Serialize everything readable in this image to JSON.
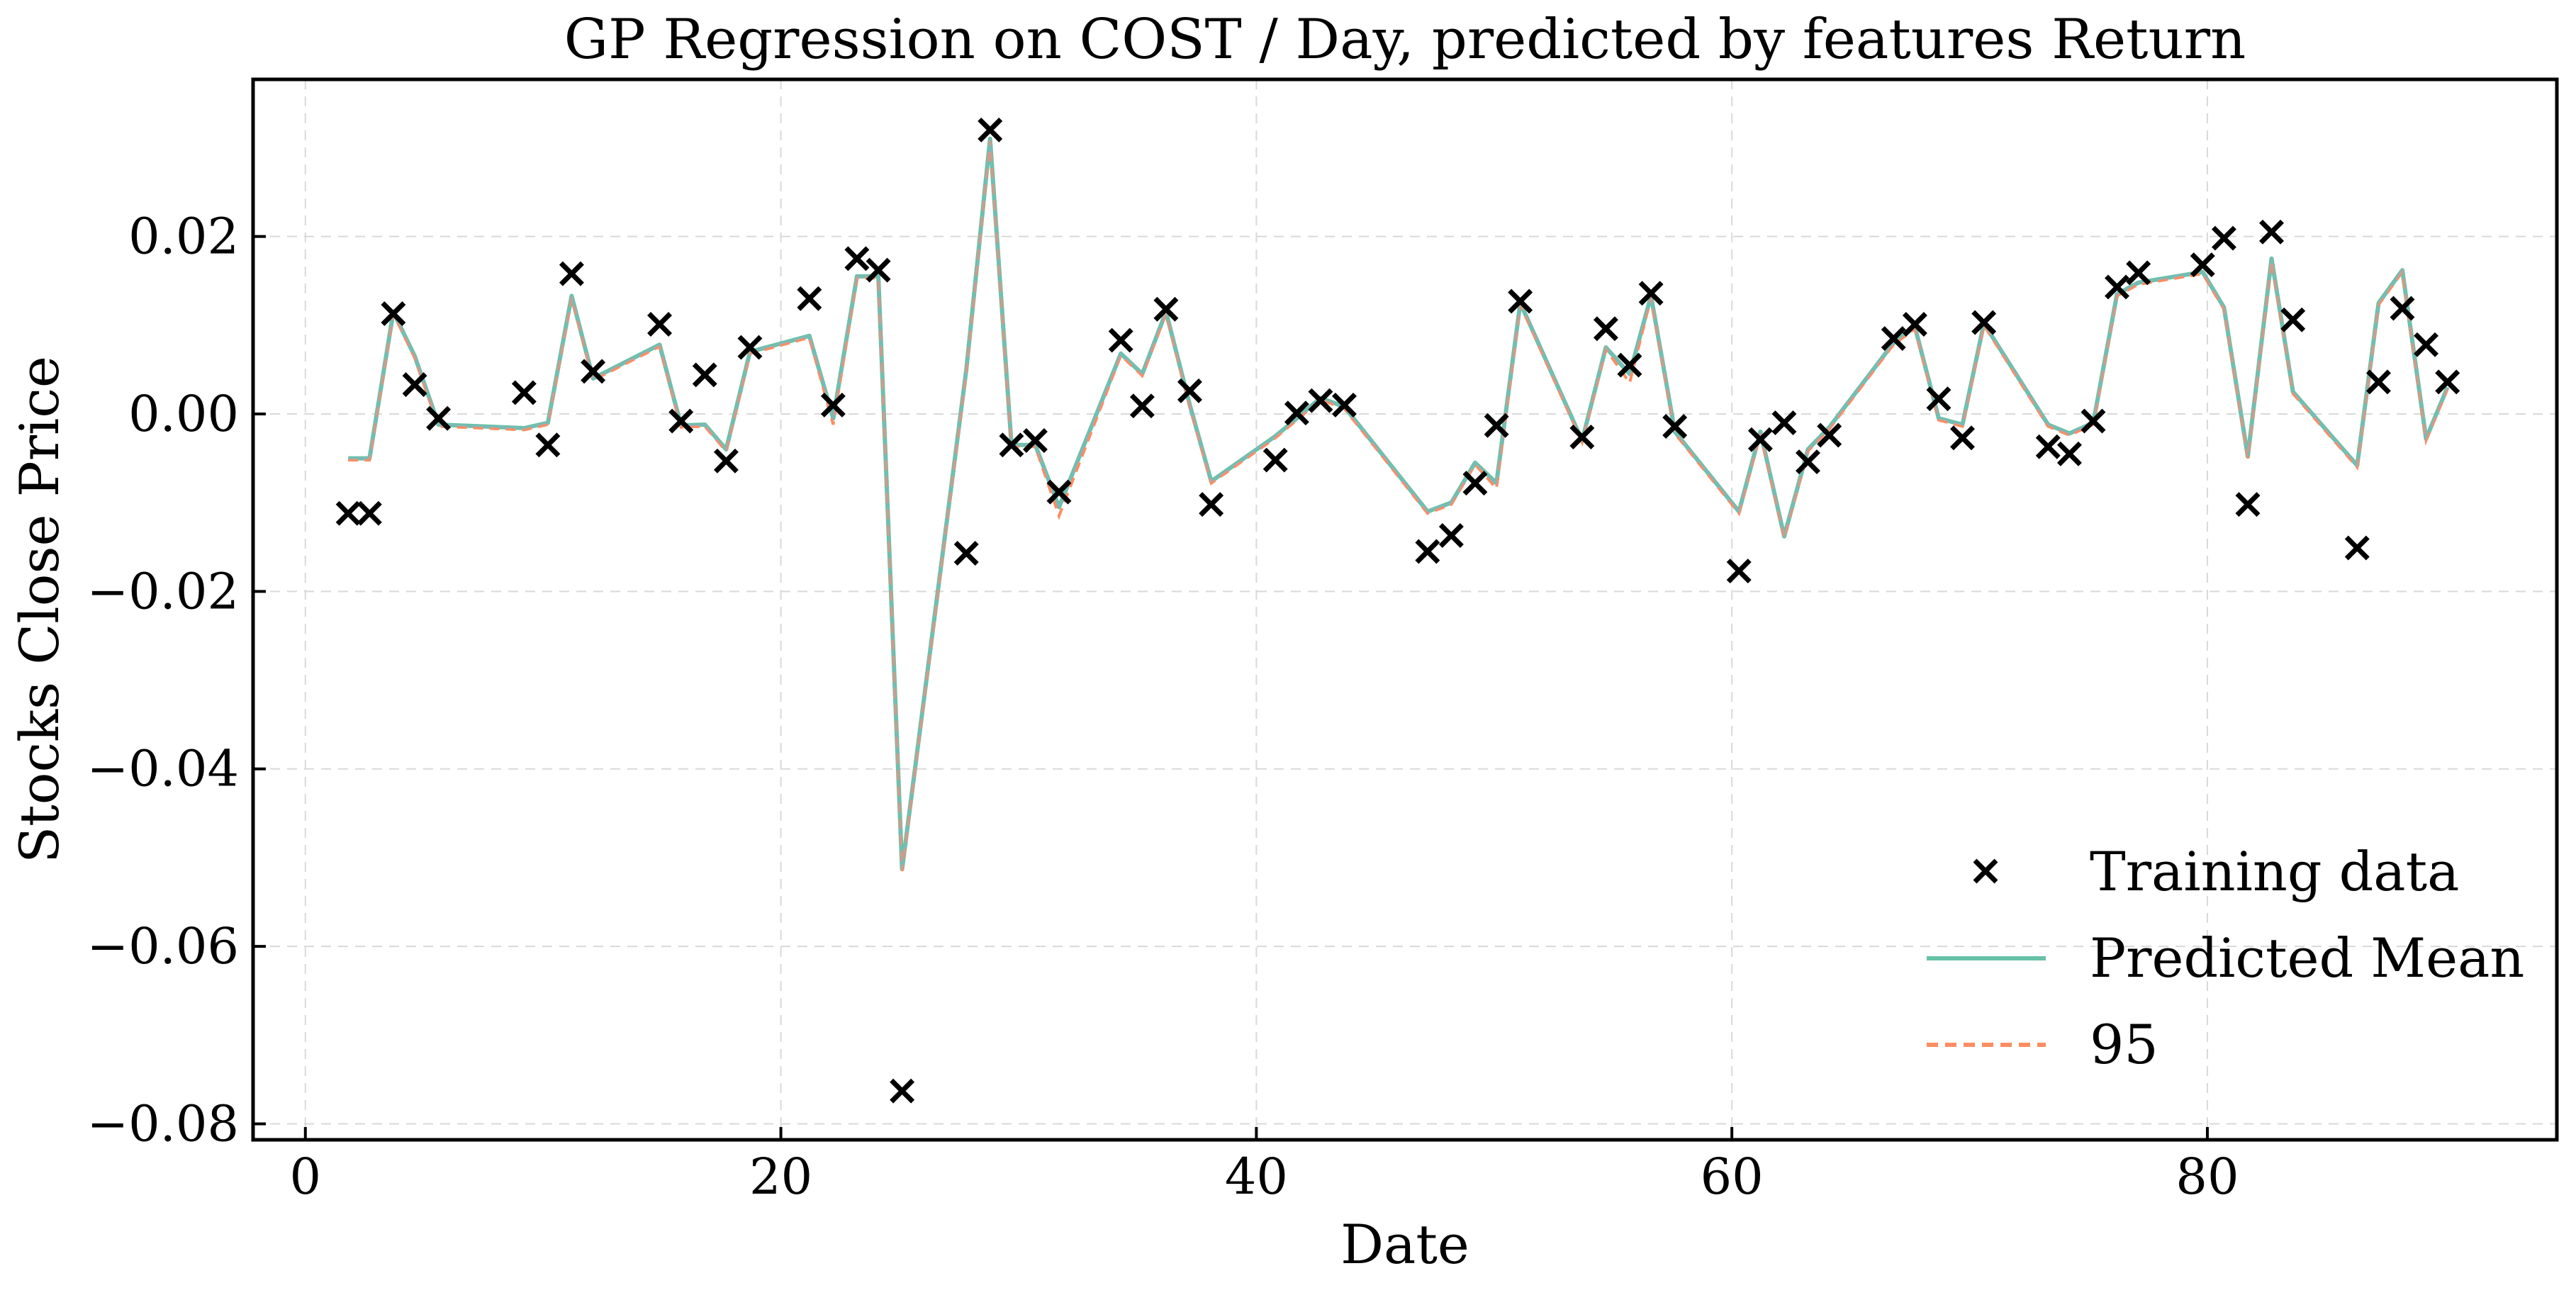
{
  "chart_data": {
    "type": "line",
    "title": "GP Regression on COST / Day, predicted by features Return",
    "xlabel": "Date",
    "ylabel": "Stocks Close Price",
    "xlim": [
      -2.2,
      94.7
    ],
    "ylim": [
      -0.0818,
      0.0377
    ],
    "xticks": [
      0,
      20,
      40,
      60,
      80
    ],
    "yticks": [
      0.02,
      0.0,
      -0.02,
      -0.04,
      -0.06,
      -0.08
    ],
    "ytick_labels": [
      "0.02",
      "0.00",
      "−0.02",
      "−0.04",
      "−0.06",
      "−0.08"
    ],
    "grid": true,
    "legend_position": "lower-right",
    "series": [
      {
        "name": "Training data",
        "kind": "scatter",
        "marker": "x",
        "color": "#000000",
        "x": [
          1.8,
          2.7,
          3.7,
          4.6,
          5.6,
          9.2,
          10.2,
          11.2,
          12.1,
          14.9,
          15.8,
          16.8,
          17.7,
          18.7,
          21.2,
          22.2,
          23.2,
          24.1,
          25.1,
          27.8,
          28.8,
          29.7,
          30.7,
          31.7,
          34.3,
          35.2,
          36.2,
          37.2,
          38.1,
          40.8,
          41.7,
          42.7,
          43.7,
          47.2,
          48.2,
          49.2,
          50.1,
          51.1,
          53.7,
          54.7,
          55.7,
          56.6,
          57.6,
          60.3,
          61.2,
          62.2,
          63.2,
          64.1,
          66.8,
          67.7,
          68.7,
          69.7,
          70.6,
          73.3,
          74.2,
          75.2,
          76.2,
          77.1,
          79.8,
          80.7,
          81.7,
          82.7,
          83.6,
          86.3,
          87.2,
          88.2,
          89.2,
          90.1
        ],
        "y": [
          -0.0112,
          -0.0112,
          0.0113,
          0.0033,
          -0.0005,
          0.0024,
          -0.0035,
          0.0158,
          0.0048,
          0.0101,
          -0.0008,
          0.0044,
          -0.0053,
          0.0075,
          0.013,
          0.001,
          0.0175,
          0.0162,
          -0.0763,
          -0.0157,
          0.032,
          -0.0035,
          -0.003,
          -0.0088,
          0.0083,
          0.0009,
          0.0118,
          0.0026,
          -0.0102,
          -0.0052,
          0.0001,
          0.0015,
          0.001,
          -0.0155,
          -0.0137,
          -0.0078,
          -0.0013,
          0.0127,
          -0.0026,
          0.0096,
          0.0055,
          0.0136,
          -0.0014,
          -0.0177,
          -0.0029,
          -0.001,
          -0.0054,
          -0.0024,
          0.0085,
          0.0101,
          0.0017,
          -0.0027,
          0.0103,
          -0.0037,
          -0.0045,
          -0.0008,
          0.0143,
          0.0159,
          0.0168,
          0.0198,
          -0.0102,
          0.0205,
          0.0106,
          -0.0151,
          0.0036,
          0.0119,
          0.0078,
          0.0036
        ]
      },
      {
        "name": "Predicted Mean",
        "kind": "line",
        "style": "solid",
        "color": "#66c2a5",
        "x": [
          1.8,
          2.7,
          3.7,
          4.6,
          5.6,
          9.2,
          10.2,
          11.2,
          12.1,
          14.9,
          15.8,
          16.8,
          17.7,
          18.7,
          21.2,
          22.2,
          23.2,
          24.1,
          25.1,
          27.8,
          28.8,
          29.7,
          30.7,
          31.7,
          34.3,
          35.2,
          36.2,
          37.2,
          38.1,
          40.8,
          41.7,
          42.7,
          43.7,
          47.2,
          48.2,
          49.2,
          50.1,
          51.1,
          53.7,
          54.7,
          55.7,
          56.6,
          57.6,
          60.3,
          61.2,
          62.2,
          63.2,
          64.1,
          66.8,
          67.7,
          68.7,
          69.7,
          70.6,
          73.3,
          74.2,
          75.2,
          76.2,
          77.1,
          79.8,
          80.7,
          81.7,
          82.7,
          83.6,
          86.3,
          87.2,
          88.2,
          89.2,
          90.1
        ],
        "y": [
          -0.005,
          -0.005,
          0.0115,
          0.0065,
          -0.0012,
          -0.0016,
          -0.001,
          0.0133,
          0.004,
          0.0078,
          -0.0013,
          -0.0012,
          -0.004,
          0.007,
          0.0088,
          -0.0005,
          0.0155,
          0.0155,
          -0.0513,
          0.005,
          0.031,
          -0.0035,
          -0.0035,
          -0.0105,
          0.0068,
          0.0045,
          0.0115,
          0.001,
          -0.0076,
          -0.0025,
          -0.0005,
          0.0018,
          0.0008,
          -0.011,
          -0.01,
          -0.0055,
          -0.0078,
          0.0125,
          -0.003,
          0.0075,
          0.0045,
          0.0133,
          -0.002,
          -0.011,
          -0.002,
          -0.0138,
          -0.004,
          -0.0015,
          0.008,
          0.0098,
          -0.0005,
          -0.0012,
          0.0102,
          -0.0012,
          -0.0022,
          -0.001,
          0.0135,
          0.0148,
          0.016,
          0.012,
          -0.0048,
          0.0175,
          0.0025,
          -0.0058,
          0.0125,
          0.0162,
          -0.0028,
          0.003
        ]
      },
      {
        "name": "95",
        "kind": "line",
        "style": "dashed",
        "color": "#fc8d62",
        "x": [
          1.8,
          2.7,
          3.7,
          4.6,
          5.6,
          9.2,
          10.2,
          11.2,
          12.1,
          14.9,
          15.8,
          16.8,
          17.7,
          18.7,
          21.2,
          22.2,
          23.2,
          24.1,
          25.1,
          27.8,
          28.8,
          29.7,
          30.7,
          31.7,
          34.3,
          35.2,
          36.2,
          37.2,
          38.1,
          40.8,
          41.7,
          42.7,
          43.7,
          47.2,
          48.2,
          49.2,
          50.1,
          51.1,
          53.7,
          54.7,
          55.7,
          56.6,
          57.6,
          60.3,
          61.2,
          62.2,
          63.2,
          64.1,
          66.8,
          67.7,
          68.7,
          69.7,
          70.6,
          73.3,
          74.2,
          75.2,
          76.2,
          77.1,
          79.8,
          80.7,
          81.7,
          82.7,
          83.6,
          86.3,
          87.2,
          88.2,
          89.2,
          90.1
        ],
        "y": [
          -0.0052,
          -0.0052,
          0.0113,
          0.0063,
          -0.0014,
          -0.0018,
          -0.0012,
          0.0131,
          0.0038,
          0.0076,
          -0.0015,
          -0.0014,
          -0.0042,
          0.0068,
          0.0086,
          -0.0012,
          0.0153,
          0.0153,
          -0.0515,
          0.0048,
          0.0308,
          -0.0037,
          -0.0037,
          -0.0115,
          0.0066,
          0.0043,
          0.0113,
          0.0008,
          -0.0078,
          -0.0027,
          -0.0007,
          0.0016,
          0.0006,
          -0.0112,
          -0.0102,
          -0.0057,
          -0.0084,
          0.0123,
          -0.0032,
          0.0073,
          0.0035,
          0.0131,
          -0.0022,
          -0.0112,
          -0.0022,
          -0.014,
          -0.0042,
          -0.0017,
          0.0078,
          0.0096,
          -0.0007,
          -0.0014,
          0.01,
          -0.0014,
          -0.0024,
          -0.0012,
          0.0133,
          0.0146,
          0.0158,
          0.0118,
          -0.005,
          0.0173,
          0.0023,
          -0.006,
          0.0123,
          0.016,
          -0.003,
          0.0028
        ]
      }
    ]
  }
}
